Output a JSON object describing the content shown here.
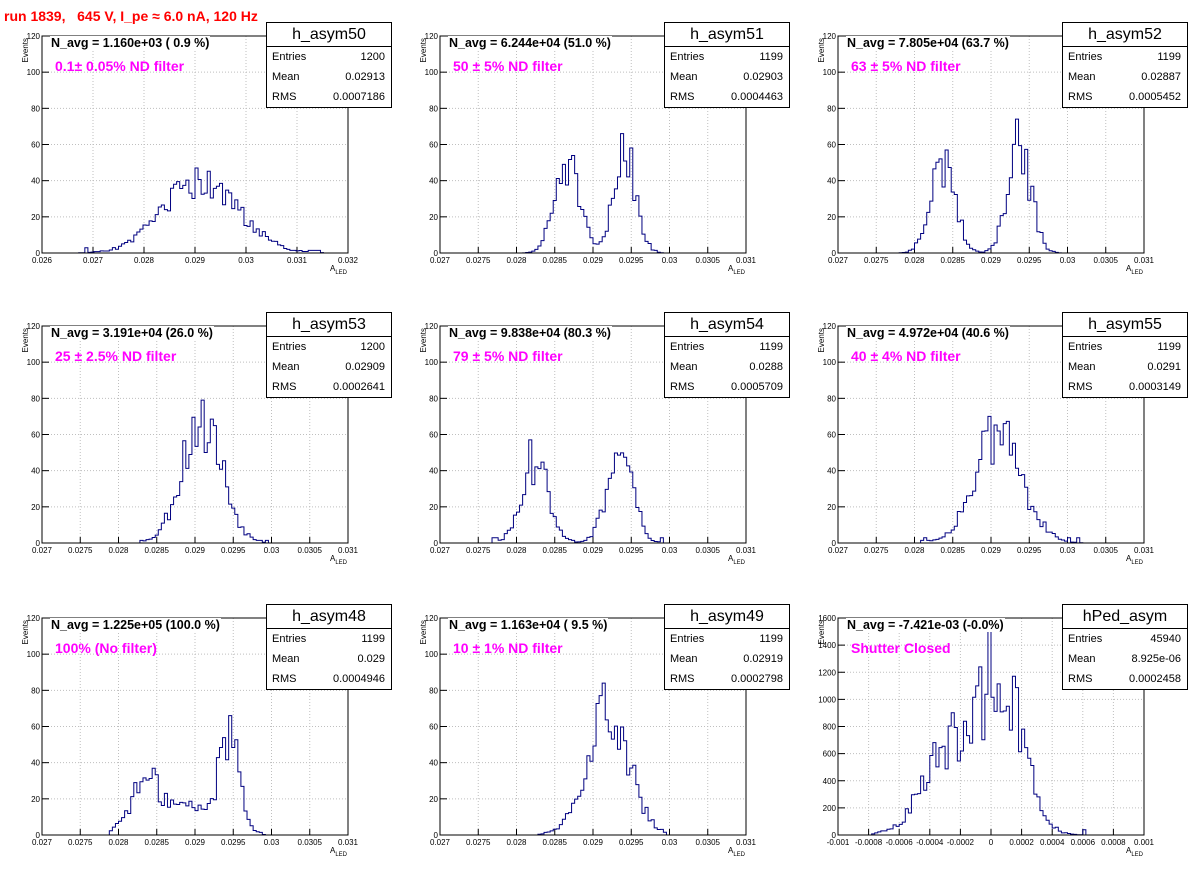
{
  "title": "run 1839,   645 V, I_pe ≈ 6.0 nA, 120 Hz",
  "stat_labels": {
    "entries": "Entries",
    "mean": "Mean",
    "rms": "RMS"
  },
  "ylabel": "Events",
  "xlabel_main": "A",
  "xlabel_sub": "LED",
  "colors": {
    "title": "#ff0000",
    "annotation": "#ff00ff",
    "histogram": "#000080",
    "grid": "#bfbfbf"
  },
  "chart_data": [
    {
      "type": "histogram",
      "name": "h_asym50",
      "navg": "N_avg = 1.160e+03 ( 0.9 %)",
      "filter": "0.1± 0.05% ND filter",
      "stats": {
        "entries": "1200",
        "mean": "0.02913",
        "rms": "0.0007186"
      },
      "xlim": [
        0.026,
        0.032
      ],
      "ylim": [
        0,
        120
      ],
      "xticks": [
        "0.026",
        "0.027",
        "0.028",
        "0.029",
        "0.03",
        "0.031",
        "0.032"
      ],
      "yticks": [
        "0",
        "20",
        "40",
        "60",
        "80",
        "100",
        "120"
      ],
      "dist": [
        {
          "mu": 0.02913,
          "sigma": 0.00072,
          "amp": 40
        }
      ],
      "peak": 47,
      "xmin": 0.0267,
      "xmax": 0.0315,
      "nbins": 100,
      "seed": 50,
      "grid": true,
      "legend": "top-right"
    },
    {
      "type": "histogram",
      "name": "h_asym51",
      "navg": "N_avg = 6.244e+04 (51.0 %)",
      "filter": "50 ± 5% ND filter",
      "stats": {
        "entries": "1199",
        "mean": "0.02903",
        "rms": "0.0004463"
      },
      "xlim": [
        0.027,
        0.031
      ],
      "ylim": [
        0,
        120
      ],
      "xticks": [
        "0.027",
        "0.0275",
        "0.028",
        "0.0285",
        "0.029",
        "0.0295",
        "0.03",
        "0.0305",
        "0.031"
      ],
      "yticks": [
        "0",
        "20",
        "40",
        "60",
        "80",
        "100",
        "120"
      ],
      "dist": [
        {
          "mu": 0.02866,
          "sigma": 0.00016,
          "amp": 50
        },
        {
          "mu": 0.02942,
          "sigma": 0.00014,
          "amp": 58
        }
      ],
      "peak": 66,
      "xmin": 0.0281,
      "xmax": 0.0299,
      "nbins": 100,
      "seed": 51,
      "grid": true,
      "legend": "top-right"
    },
    {
      "type": "histogram",
      "name": "h_asym52",
      "navg": "N_avg = 7.805e+04 (63.7 %)",
      "filter": "63 ± 5% ND filter",
      "stats": {
        "entries": "1199",
        "mean": "0.02887",
        "rms": "0.0005452"
      },
      "xlim": [
        0.027,
        0.031
      ],
      "ylim": [
        0,
        120
      ],
      "xticks": [
        "0.027",
        "0.0275",
        "0.028",
        "0.0285",
        "0.029",
        "0.0295",
        "0.03",
        "0.0305",
        "0.031"
      ],
      "yticks": [
        "0",
        "20",
        "40",
        "60",
        "80",
        "100",
        "120"
      ],
      "dist": [
        {
          "mu": 0.02837,
          "sigma": 0.00016,
          "amp": 48
        },
        {
          "mu": 0.02937,
          "sigma": 0.00015,
          "amp": 60
        }
      ],
      "peak": 74,
      "xmin": 0.0278,
      "xmax": 0.0299,
      "nbins": 100,
      "seed": 52,
      "grid": true,
      "legend": "top-right"
    },
    {
      "type": "histogram",
      "name": "h_asym53",
      "navg": "N_avg = 3.191e+04 (26.0 %)",
      "filter": "25 ± 2.5% ND filter",
      "stats": {
        "entries": "1200",
        "mean": "0.02909",
        "rms": "0.0002641"
      },
      "xlim": [
        0.027,
        0.031
      ],
      "ylim": [
        0,
        120
      ],
      "xticks": [
        "0.027",
        "0.0275",
        "0.028",
        "0.0285",
        "0.029",
        "0.0295",
        "0.03",
        "0.0305",
        "0.031"
      ],
      "yticks": [
        "0",
        "20",
        "40",
        "60",
        "80",
        "100",
        "120"
      ],
      "dist": [
        {
          "mu": 0.02909,
          "sigma": 0.00026,
          "amp": 70
        }
      ],
      "peak": 79,
      "xmin": 0.0283,
      "xmax": 0.02995,
      "nbins": 100,
      "seed": 53,
      "grid": true,
      "legend": "top-right"
    },
    {
      "type": "histogram",
      "name": "h_asym54",
      "navg": "N_avg = 9.838e+04 (80.3 %)",
      "filter": "79 ± 5% ND filter",
      "stats": {
        "entries": "1199",
        "mean": "0.0288",
        "rms": "0.0005709"
      },
      "xlim": [
        0.027,
        0.031
      ],
      "ylim": [
        0,
        120
      ],
      "xticks": [
        "0.027",
        "0.0275",
        "0.028",
        "0.0285",
        "0.029",
        "0.0295",
        "0.03",
        "0.0305",
        "0.031"
      ],
      "yticks": [
        "0",
        "20",
        "40",
        "60",
        "80",
        "100",
        "120"
      ],
      "dist": [
        {
          "mu": 0.02825,
          "sigma": 0.00018,
          "amp": 42
        },
        {
          "mu": 0.02935,
          "sigma": 0.00017,
          "amp": 48
        }
      ],
      "peak": 57,
      "xmin": 0.0277,
      "xmax": 0.0299,
      "nbins": 100,
      "seed": 54,
      "grid": true,
      "legend": "top-right"
    },
    {
      "type": "histogram",
      "name": "h_asym55",
      "navg": "N_avg = 4.972e+04 (40.6 %)",
      "filter": "40 ± 4% ND filter",
      "stats": {
        "entries": "1199",
        "mean": "0.0291",
        "rms": "0.0003149"
      },
      "xlim": [
        0.027,
        0.031
      ],
      "ylim": [
        0,
        120
      ],
      "xticks": [
        "0.027",
        "0.0275",
        "0.028",
        "0.0285",
        "0.029",
        "0.0295",
        "0.03",
        "0.0305",
        "0.031"
      ],
      "yticks": [
        "0",
        "20",
        "40",
        "60",
        "80",
        "100",
        "120"
      ],
      "dist": [
        {
          "mu": 0.0291,
          "sigma": 0.00031,
          "amp": 60
        }
      ],
      "peak": 70,
      "xmin": 0.0281,
      "xmax": 0.0302,
      "nbins": 100,
      "seed": 55,
      "grid": true,
      "legend": "top-right"
    },
    {
      "type": "histogram",
      "name": "h_asym48",
      "navg": "N_avg = 1.225e+05 (100.0 %)",
      "filter": "100% (No filter)",
      "stats": {
        "entries": "1199",
        "mean": "0.029",
        "rms": "0.0004946"
      },
      "xlim": [
        0.027,
        0.031
      ],
      "ylim": [
        0,
        120
      ],
      "xticks": [
        "0.027",
        "0.0275",
        "0.028",
        "0.0285",
        "0.029",
        "0.0295",
        "0.03",
        "0.0305",
        "0.031"
      ],
      "yticks": [
        "0",
        "20",
        "40",
        "60",
        "80",
        "100",
        "120"
      ],
      "dist": [
        {
          "mu": 0.02838,
          "sigma": 0.00022,
          "amp": 30
        },
        {
          "mu": 0.02945,
          "sigma": 0.00014,
          "amp": 55
        },
        {
          "mu": 0.02895,
          "sigma": 0.0002,
          "amp": 15
        }
      ],
      "peak": 66,
      "xmin": 0.0279,
      "xmax": 0.0299,
      "nbins": 100,
      "seed": 48,
      "grid": true,
      "legend": "top-right"
    },
    {
      "type": "histogram",
      "name": "h_asym49",
      "navg": "N_avg = 1.163e+04 ( 9.5 %)",
      "filter": "10 ± 1% ND filter",
      "stats": {
        "entries": "1199",
        "mean": "0.02919",
        "rms": "0.0002798"
      },
      "xlim": [
        0.027,
        0.031
      ],
      "ylim": [
        0,
        120
      ],
      "xticks": [
        "0.027",
        "0.0275",
        "0.028",
        "0.0285",
        "0.029",
        "0.0295",
        "0.03",
        "0.0305",
        "0.031"
      ],
      "yticks": [
        "0",
        "20",
        "40",
        "60",
        "80",
        "100",
        "120"
      ],
      "dist": [
        {
          "mu": 0.02919,
          "sigma": 0.00028,
          "amp": 70
        }
      ],
      "peak": 84,
      "xmin": 0.0283,
      "xmax": 0.02995,
      "nbins": 100,
      "seed": 49,
      "grid": true,
      "legend": "top-right"
    },
    {
      "type": "histogram",
      "name": "hPed_asym",
      "navg": "N_avg = -7.421e-03 (-0.0%)",
      "filter": "Shutter Closed",
      "stats": {
        "entries": "45940",
        "mean": "8.925e-06",
        "rms": "0.0002458"
      },
      "xlim": [
        -0.001,
        0.001
      ],
      "ylim": [
        0,
        1600
      ],
      "xticks": [
        "-0.001",
        "-0.0008",
        "-0.0006",
        "-0.0004",
        "-0.0002",
        "0",
        "0.0002",
        "0.0004",
        "0.0006",
        "0.0008",
        "0.001"
      ],
      "yticks": [
        "0",
        "200",
        "400",
        "600",
        "800",
        "1000",
        "1200",
        "1400",
        "1600"
      ],
      "dist": [
        {
          "mu": 8e-05,
          "sigma": 0.00014,
          "amp": 1000
        },
        {
          "mu": -0.00025,
          "sigma": 0.00018,
          "amp": 650
        }
      ],
      "peak": 1600,
      "xmin": -0.00078,
      "xmax": 0.00062,
      "nbins": 100,
      "seed": 60,
      "grid": true,
      "legend": "top-right"
    }
  ]
}
